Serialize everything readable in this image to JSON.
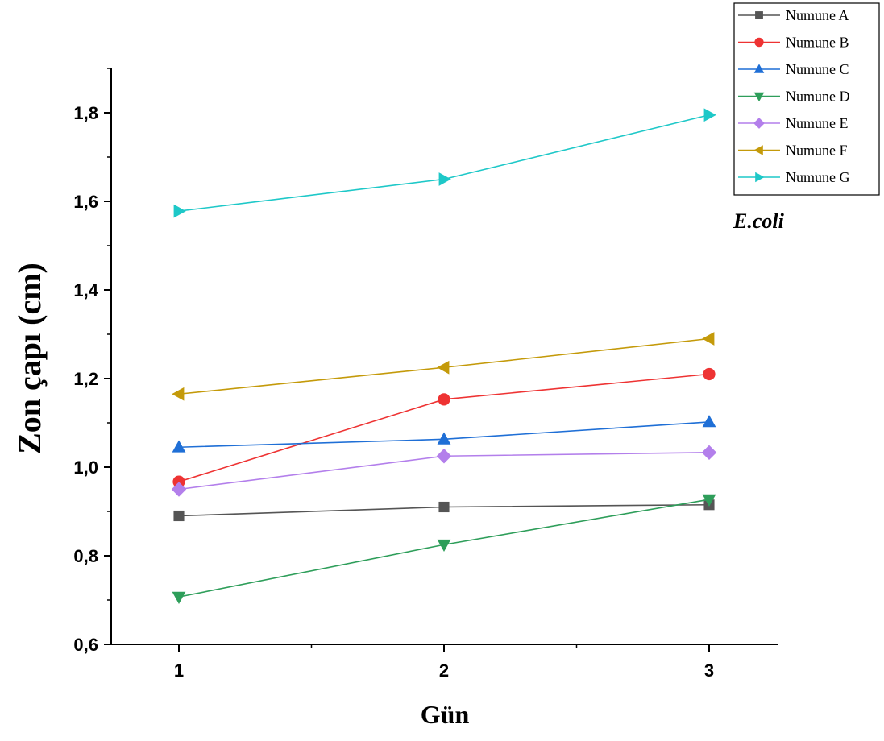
{
  "chart_data": {
    "type": "line",
    "title": "",
    "xlabel": "Gün",
    "ylabel": "Zon çapı (cm)",
    "x": [
      1,
      2,
      3
    ],
    "x_tick_labels": [
      "1",
      "2",
      "3"
    ],
    "xlim": [
      0.75,
      3.25
    ],
    "ylim": [
      0.6,
      1.9
    ],
    "y_ticks": [
      0.6,
      0.8,
      1.0,
      1.2,
      1.4,
      1.6,
      1.8
    ],
    "y_tick_labels": [
      "0,6",
      "0,8",
      "1,0",
      "1,2",
      "1,4",
      "1,6",
      "1,8"
    ],
    "grid": false,
    "legend_position": "top-right",
    "annotation": "E.coli",
    "series": [
      {
        "name": "Numune A",
        "values": [
          0.89,
          0.91,
          0.915
        ],
        "color": "#555555",
        "marker": "square"
      },
      {
        "name": "Numune B",
        "values": [
          0.967,
          1.153,
          1.21
        ],
        "color": "#ee3333",
        "marker": "circle"
      },
      {
        "name": "Numune C",
        "values": [
          1.045,
          1.063,
          1.102
        ],
        "color": "#1f6fd6",
        "marker": "triangle-up"
      },
      {
        "name": "Numune D",
        "values": [
          0.707,
          0.825,
          0.927
        ],
        "color": "#2e9e5a",
        "marker": "triangle-down"
      },
      {
        "name": "Numune E",
        "values": [
          0.95,
          1.025,
          1.033
        ],
        "color": "#b37feb",
        "marker": "diamond"
      },
      {
        "name": "Numune F",
        "values": [
          1.165,
          1.225,
          1.29
        ],
        "color": "#c49a0a",
        "marker": "triangle-left"
      },
      {
        "name": "Numune G",
        "values": [
          1.578,
          1.65,
          1.795
        ],
        "color": "#1ec8c8",
        "marker": "triangle-right"
      }
    ]
  }
}
